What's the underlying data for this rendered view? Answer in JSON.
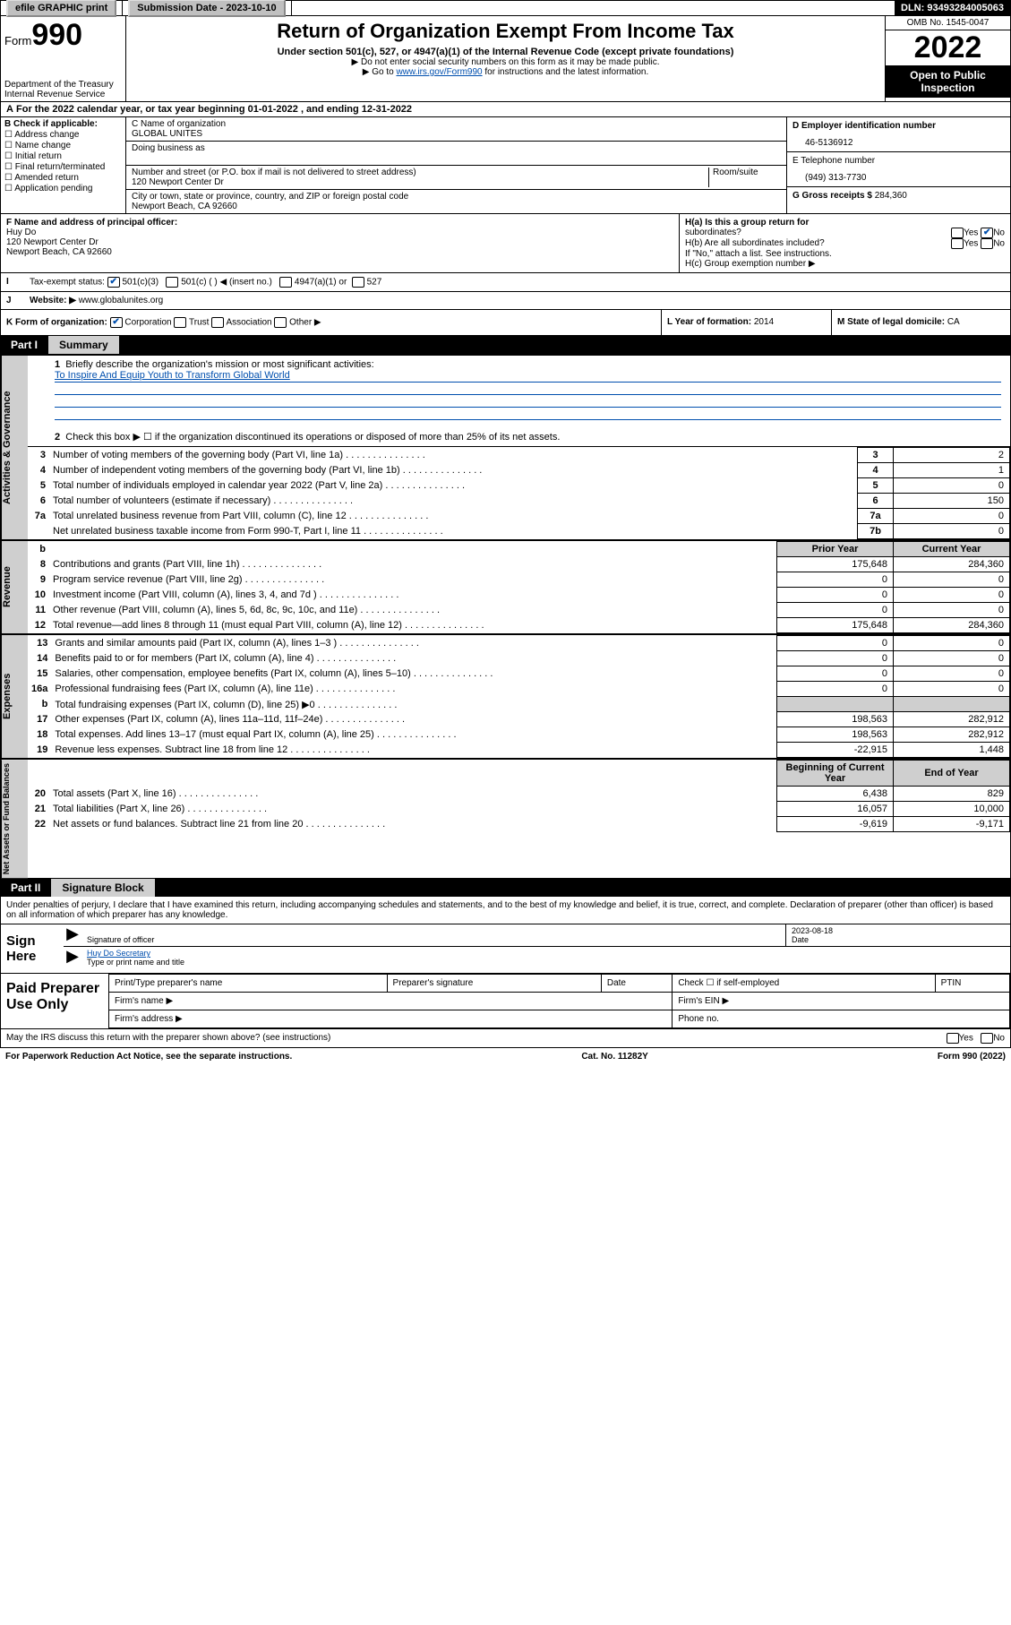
{
  "topbar": {
    "efile": "efile GRAPHIC print",
    "submission_label": "Submission Date - 2023-10-10",
    "dln": "DLN: 93493284005063"
  },
  "header": {
    "form_label": "Form",
    "form_num": "990",
    "dept": "Department of the Treasury",
    "irs": "Internal Revenue Service",
    "title": "Return of Organization Exempt From Income Tax",
    "sub": "Under section 501(c), 527, or 4947(a)(1) of the Internal Revenue Code (except private foundations)",
    "note1": "▶ Do not enter social security numbers on this form as it may be made public.",
    "note2a": "▶ Go to ",
    "note2_link": "www.irs.gov/Form990",
    "note2b": " for instructions and the latest information.",
    "omb": "OMB No. 1545-0047",
    "year": "2022",
    "open": "Open to Public Inspection"
  },
  "row_a": "For the 2022 calendar year, or tax year beginning 01-01-2022   , and ending 12-31-2022",
  "box_b": {
    "head": "B Check if applicable:",
    "items": [
      "Address change",
      "Name change",
      "Initial return",
      "Final return/terminated",
      "Amended return",
      "Application pending"
    ]
  },
  "box_c": {
    "name_label": "C Name of organization",
    "name": "GLOBAL UNITES",
    "dba_label": "Doing business as",
    "addr_label": "Number and street (or P.O. box if mail is not delivered to street address)",
    "room_label": "Room/suite",
    "addr": "120 Newport Center Dr",
    "city_label": "City or town, state or province, country, and ZIP or foreign postal code",
    "city": "Newport Beach, CA  92660"
  },
  "box_d": {
    "ein_label": "D Employer identification number",
    "ein": "46-5136912",
    "phone_label": "E Telephone number",
    "phone": "(949) 313-7730",
    "gross_label": "G Gross receipts $",
    "gross": "284,360"
  },
  "box_f": {
    "label": "F Name and address of principal officer:",
    "name": "Huy Do",
    "addr1": "120 Newport Center Dr",
    "addr2": "Newport Beach, CA  92660"
  },
  "box_h": {
    "ha": "H(a)  Is this a group return for",
    "ha2": "subordinates?",
    "hb": "H(b)  Are all subordinates included?",
    "hb2": "If \"No,\" attach a list. See instructions.",
    "hc": "H(c)  Group exemption number ▶",
    "yes": "Yes",
    "no": "No"
  },
  "row_i": {
    "label": "Tax-exempt status:",
    "o1": "501(c)(3)",
    "o2": "501(c) (  ) ◀ (insert no.)",
    "o3": "4947(a)(1) or",
    "o4": "527"
  },
  "row_j": {
    "label": "Website: ▶",
    "val": "www.globalunites.org"
  },
  "row_k": {
    "label": "K Form of organization:",
    "o1": "Corporation",
    "o2": "Trust",
    "o3": "Association",
    "o4": "Other ▶"
  },
  "row_l": {
    "label": "L Year of formation:",
    "val": "2014"
  },
  "row_m": {
    "label": "M State of legal domicile:",
    "val": "CA"
  },
  "part1": {
    "num": "Part I",
    "title": "Summary",
    "q1": "Briefly describe the organization's mission or most significant activities:",
    "mission": "To Inspire And Equip Youth to Transform Global World",
    "q2": "Check this box ▶ ☐  if the organization discontinued its operations or disposed of more than 25% of its net assets.",
    "vtab1": "Activities & Governance",
    "vtab2": "Revenue",
    "vtab3": "Expenses",
    "vtab4": "Net Assets or Fund Balances",
    "rows_gov": [
      {
        "n": "3",
        "d": "Number of voting members of the governing body (Part VI, line 1a)",
        "box": "3",
        "v": "2"
      },
      {
        "n": "4",
        "d": "Number of independent voting members of the governing body (Part VI, line 1b)",
        "box": "4",
        "v": "1"
      },
      {
        "n": "5",
        "d": "Total number of individuals employed in calendar year 2022 (Part V, line 2a)",
        "box": "5",
        "v": "0"
      },
      {
        "n": "6",
        "d": "Total number of volunteers (estimate if necessary)",
        "box": "6",
        "v": "150"
      },
      {
        "n": "7a",
        "d": "Total unrelated business revenue from Part VIII, column (C), line 12",
        "box": "7a",
        "v": "0"
      },
      {
        "n": "",
        "d": "Net unrelated business taxable income from Form 990-T, Part I, line 11",
        "box": "7b",
        "v": "0"
      }
    ],
    "hdr_prior": "Prior Year",
    "hdr_curr": "Current Year",
    "hdr_beg": "Beginning of Current Year",
    "hdr_end": "End of Year",
    "rows_rev": [
      {
        "n": "8",
        "d": "Contributions and grants (Part VIII, line 1h)",
        "p": "175,648",
        "c": "284,360"
      },
      {
        "n": "9",
        "d": "Program service revenue (Part VIII, line 2g)",
        "p": "0",
        "c": "0"
      },
      {
        "n": "10",
        "d": "Investment income (Part VIII, column (A), lines 3, 4, and 7d )",
        "p": "0",
        "c": "0"
      },
      {
        "n": "11",
        "d": "Other revenue (Part VIII, column (A), lines 5, 6d, 8c, 9c, 10c, and 11e)",
        "p": "0",
        "c": "0"
      },
      {
        "n": "12",
        "d": "Total revenue—add lines 8 through 11 (must equal Part VIII, column (A), line 12)",
        "p": "175,648",
        "c": "284,360"
      }
    ],
    "rows_exp": [
      {
        "n": "13",
        "d": "Grants and similar amounts paid (Part IX, column (A), lines 1–3 )",
        "p": "0",
        "c": "0"
      },
      {
        "n": "14",
        "d": "Benefits paid to or for members (Part IX, column (A), line 4)",
        "p": "0",
        "c": "0"
      },
      {
        "n": "15",
        "d": "Salaries, other compensation, employee benefits (Part IX, column (A), lines 5–10)",
        "p": "0",
        "c": "0"
      },
      {
        "n": "16a",
        "d": "Professional fundraising fees (Part IX, column (A), line 11e)",
        "p": "0",
        "c": "0"
      },
      {
        "n": "b",
        "d": "Total fundraising expenses (Part IX, column (D), line 25) ▶0",
        "p": "",
        "c": "",
        "gray": true
      },
      {
        "n": "17",
        "d": "Other expenses (Part IX, column (A), lines 11a–11d, 11f–24e)",
        "p": "198,563",
        "c": "282,912"
      },
      {
        "n": "18",
        "d": "Total expenses. Add lines 13–17 (must equal Part IX, column (A), line 25)",
        "p": "198,563",
        "c": "282,912"
      },
      {
        "n": "19",
        "d": "Revenue less expenses. Subtract line 18 from line 12",
        "p": "-22,915",
        "c": "1,448"
      }
    ],
    "rows_net": [
      {
        "n": "20",
        "d": "Total assets (Part X, line 16)",
        "p": "6,438",
        "c": "829"
      },
      {
        "n": "21",
        "d": "Total liabilities (Part X, line 26)",
        "p": "16,057",
        "c": "10,000"
      },
      {
        "n": "22",
        "d": "Net assets or fund balances. Subtract line 21 from line 20",
        "p": "-9,619",
        "c": "-9,171"
      }
    ]
  },
  "part2": {
    "num": "Part II",
    "title": "Signature Block",
    "decl": "Under penalties of perjury, I declare that I have examined this return, including accompanying schedules and statements, and to the best of my knowledge and belief, it is true, correct, and complete. Declaration of preparer (other than officer) is based on all information of which preparer has any knowledge.",
    "sign_here": "Sign Here",
    "sig_officer": "Signature of officer",
    "sig_date": "Date",
    "sig_date_val": "2023-08-18",
    "sig_name": "Huy Do Secretary",
    "sig_name_label": "Type or print name and title",
    "paid": "Paid Preparer Use Only",
    "prep_name": "Print/Type preparer's name",
    "prep_sig": "Preparer's signature",
    "prep_date": "Date",
    "prep_check": "Check ☐ if self-employed",
    "prep_ptin": "PTIN",
    "firm_name": "Firm's name  ▶",
    "firm_ein": "Firm's EIN ▶",
    "firm_addr": "Firm's address ▶",
    "firm_phone": "Phone no."
  },
  "footer": {
    "q": "May the IRS discuss this return with the preparer shown above? (see instructions)",
    "yes": "Yes",
    "no": "No",
    "pra": "For Paperwork Reduction Act Notice, see the separate instructions.",
    "cat": "Cat. No. 11282Y",
    "form": "Form 990 (2022)"
  }
}
